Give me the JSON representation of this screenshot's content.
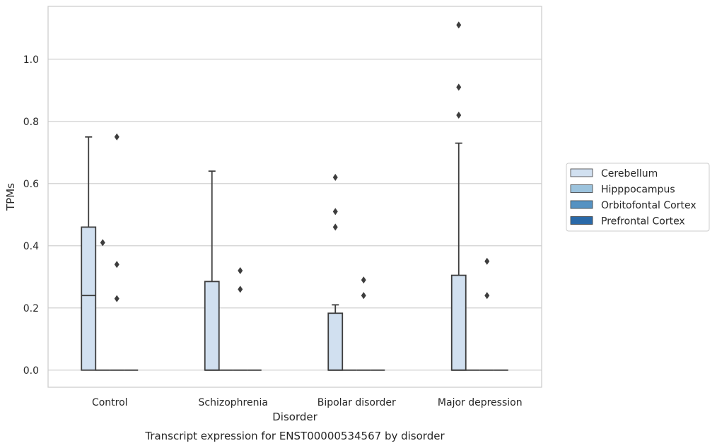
{
  "chart_data": {
    "type": "box",
    "title": "Transcript expression for ENST00000534567 by disorder",
    "xlabel": "Disorder",
    "ylabel": "TPMs",
    "ylim": [
      -0.055,
      1.17
    ],
    "yticks": [
      "0.0",
      "0.2",
      "0.4",
      "0.6",
      "0.8",
      "1.0"
    ],
    "grid": true,
    "legend_position": "right",
    "categories": [
      "Control",
      "Schizophrenia",
      "Bipolar disorder",
      "Major depression"
    ],
    "series": [
      {
        "name": "Cerebellum",
        "color": "#d1e0f0",
        "boxes": [
          {
            "whisker_low": 0.0,
            "q1": 0.0,
            "median": 0.24,
            "q3": 0.46,
            "whisker_high": 0.75,
            "outliers": []
          },
          {
            "whisker_low": 0.0,
            "q1": 0.0,
            "median": 0.0,
            "q3": 0.285,
            "whisker_high": 0.64,
            "outliers": []
          },
          {
            "whisker_low": 0.0,
            "q1": 0.0,
            "median": 0.0,
            "q3": 0.183,
            "whisker_high": 0.21,
            "outliers": [
              0.46,
              0.51,
              0.62
            ]
          },
          {
            "whisker_low": 0.0,
            "q1": 0.0,
            "median": 0.0,
            "q3": 0.305,
            "whisker_high": 0.73,
            "outliers": [
              0.82,
              0.91,
              1.11
            ]
          }
        ]
      },
      {
        "name": "Hipppocampus",
        "color": "#9cc3dd",
        "boxes": [
          {
            "whisker_low": 0.0,
            "q1": 0.0,
            "median": 0.0,
            "q3": 0.0,
            "whisker_high": 0.0,
            "outliers": [
              0.41
            ]
          },
          {
            "whisker_low": 0.0,
            "q1": 0.0,
            "median": 0.0,
            "q3": 0.0,
            "whisker_high": 0.0,
            "outliers": []
          },
          {
            "whisker_low": 0.0,
            "q1": 0.0,
            "median": 0.0,
            "q3": 0.0,
            "whisker_high": 0.0,
            "outliers": []
          },
          {
            "whisker_low": 0.0,
            "q1": 0.0,
            "median": 0.0,
            "q3": 0.0,
            "whisker_high": 0.0,
            "outliers": []
          }
        ]
      },
      {
        "name": "Orbitofontal Cortex",
        "color": "#5592c2",
        "boxes": [
          {
            "whisker_low": 0.0,
            "q1": 0.0,
            "median": 0.0,
            "q3": 0.0,
            "whisker_high": 0.0,
            "outliers": [
              0.23,
              0.34,
              0.75
            ]
          },
          {
            "whisker_low": 0.0,
            "q1": 0.0,
            "median": 0.0,
            "q3": 0.0,
            "whisker_high": 0.0,
            "outliers": [
              0.26,
              0.32
            ]
          },
          {
            "whisker_low": 0.0,
            "q1": 0.0,
            "median": 0.0,
            "q3": 0.0,
            "whisker_high": 0.0,
            "outliers": [
              0.24,
              0.29
            ]
          },
          {
            "whisker_low": 0.0,
            "q1": 0.0,
            "median": 0.0,
            "q3": 0.0,
            "whisker_high": 0.0,
            "outliers": [
              0.24,
              0.35
            ]
          }
        ]
      },
      {
        "name": "Prefrontal Cortex",
        "color": "#2a69a8",
        "boxes": [
          {
            "whisker_low": 0.0,
            "q1": 0.0,
            "median": 0.0,
            "q3": 0.0,
            "whisker_high": 0.0,
            "outliers": []
          },
          {
            "whisker_low": 0.0,
            "q1": 0.0,
            "median": 0.0,
            "q3": 0.0,
            "whisker_high": 0.0,
            "outliers": []
          },
          {
            "whisker_low": 0.0,
            "q1": 0.0,
            "median": 0.0,
            "q3": 0.0,
            "whisker_high": 0.0,
            "outliers": []
          },
          {
            "whisker_low": 0.0,
            "q1": 0.0,
            "median": 0.0,
            "q3": 0.0,
            "whisker_high": 0.0,
            "outliers": []
          }
        ]
      }
    ]
  }
}
